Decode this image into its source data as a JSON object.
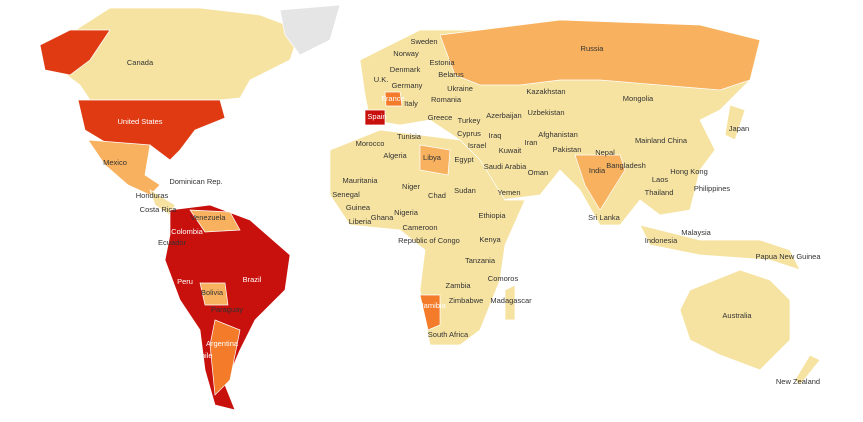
{
  "labels": [
    "Canada",
    "United States",
    "Mexico",
    "Dominican Rep.",
    "Honduras",
    "Costa Rica",
    "Venezuela",
    "Colombia",
    "Ecuador",
    "Peru",
    "Brazil",
    "Bolivia",
    "Paraguay",
    "Chile",
    "Argentina",
    "Sweden",
    "Norway",
    "Estonia",
    "Denmark",
    "Belarus",
    "U.K.",
    "Germany",
    "Ukraine",
    "France",
    "Romania",
    "Italy",
    "Spain",
    "Greece",
    "Turkey",
    "Kazakhstan",
    "Russia",
    "Uzbekistan",
    "Mongolia",
    "Azerbaijan",
    "Cyprus",
    "Tunisia",
    "Israel",
    "Iraq",
    "Afghanistan",
    "Kuwait",
    "Iran",
    "Pakistan",
    "Nepal",
    "Morocco",
    "Algeria",
    "Libya",
    "Egypt",
    "Saudi Arabia",
    "Bangladesh",
    "Mainland China",
    "Japan",
    "Oman",
    "India",
    "Hong Kong",
    "Mauritania",
    "Niger",
    "Sudan",
    "Yemen",
    "Laos",
    "Thailand",
    "Philippines",
    "Senegal",
    "Chad",
    "Guinea",
    "Ghana",
    "Nigeria",
    "Ethiopia",
    "Sri Lanka",
    "Liberia",
    "Cameroon",
    "Malaysia",
    "Indonesia",
    "Republic of Congo",
    "Kenya",
    "Papua New Guinea",
    "Tanzania",
    "Comoros",
    "Zambia",
    "Zimbabwe",
    "Madagascar",
    "Namibia",
    "South Africa",
    "Australia",
    "New Zealand"
  ]
}
